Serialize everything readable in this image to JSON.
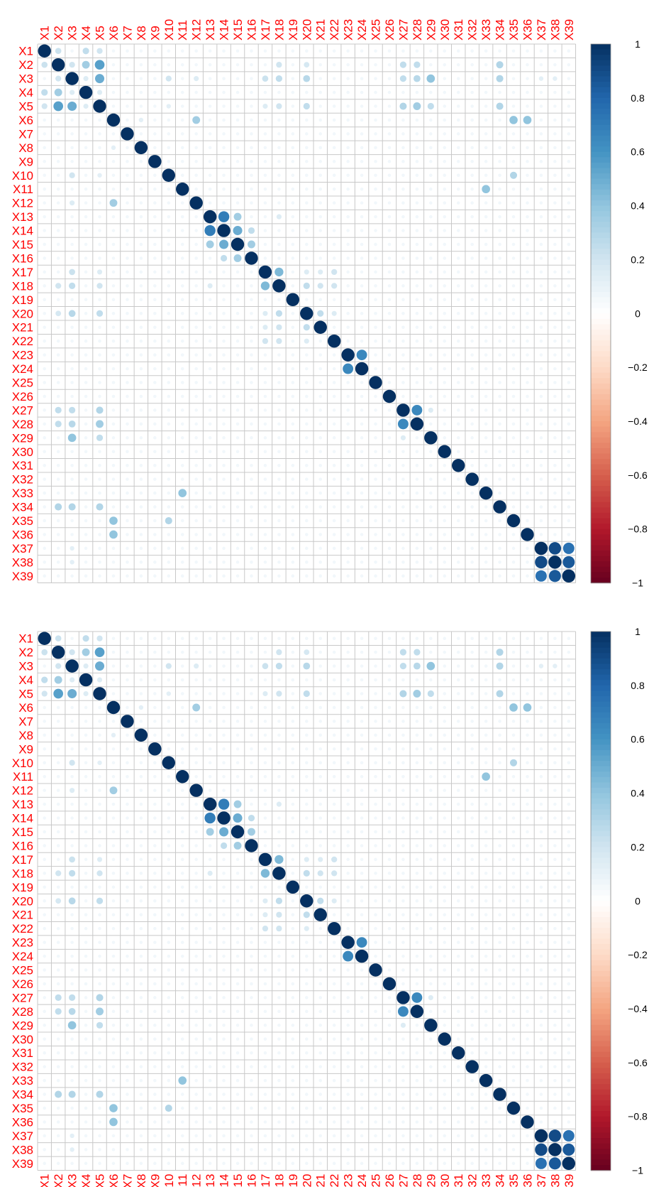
{
  "chart_data": [
    {
      "type": "heatmap",
      "style": "corrplot-circle",
      "labels": [
        "X1",
        "X2",
        "X3",
        "X4",
        "X5",
        "X6",
        "X7",
        "X8",
        "X9",
        "X10",
        "X11",
        "X12",
        "X13",
        "X14",
        "X15",
        "X16",
        "X17",
        "X18",
        "X19",
        "X20",
        "X21",
        "X22",
        "X23",
        "X24",
        "X25",
        "X26",
        "X27",
        "X28",
        "X29",
        "X30",
        "X31",
        "X32",
        "X33",
        "X34",
        "X35",
        "X36",
        "X37",
        "X38",
        "X39"
      ],
      "label_color": "#ff0000",
      "value_range": [
        -1,
        1
      ],
      "colorbar_ticks": [
        "1",
        "0.8",
        "0.6",
        "0.4",
        "0.2",
        "0",
        "−0.2",
        "−0.4",
        "−0.6",
        "−0.8",
        "−1"
      ],
      "colorscale": [
        "#67001f",
        "#b2182b",
        "#d6604d",
        "#f4a582",
        "#fddbc7",
        "#ffffff",
        "#d1e5f0",
        "#92c5de",
        "#4393c3",
        "#2166ac",
        "#053061"
      ],
      "x_labels_position": "top",
      "diagonal": 1,
      "background_level": 0.06,
      "correlations": [
        [
          1,
          2,
          0.22
        ],
        [
          1,
          4,
          0.25
        ],
        [
          1,
          5,
          0.2
        ],
        [
          2,
          3,
          0.2
        ],
        [
          2,
          4,
          0.35
        ],
        [
          2,
          5,
          0.55
        ],
        [
          2,
          18,
          0.2
        ],
        [
          2,
          20,
          0.18
        ],
        [
          2,
          27,
          0.25
        ],
        [
          2,
          28,
          0.25
        ],
        [
          2,
          34,
          0.3
        ],
        [
          3,
          4,
          0.15
        ],
        [
          3,
          5,
          0.5
        ],
        [
          3,
          10,
          0.2
        ],
        [
          3,
          12,
          0.15
        ],
        [
          3,
          17,
          0.22
        ],
        [
          3,
          18,
          0.25
        ],
        [
          3,
          20,
          0.28
        ],
        [
          3,
          27,
          0.25
        ],
        [
          3,
          28,
          0.28
        ],
        [
          3,
          29,
          0.4
        ],
        [
          3,
          34,
          0.3
        ],
        [
          3,
          37,
          0.12
        ],
        [
          3,
          38,
          0.12
        ],
        [
          4,
          5,
          0.15
        ],
        [
          5,
          10,
          0.12
        ],
        [
          5,
          17,
          0.15
        ],
        [
          5,
          18,
          0.2
        ],
        [
          5,
          20,
          0.25
        ],
        [
          5,
          27,
          0.3
        ],
        [
          5,
          28,
          0.35
        ],
        [
          5,
          29,
          0.25
        ],
        [
          5,
          34,
          0.3
        ],
        [
          6,
          8,
          0.12
        ],
        [
          6,
          12,
          0.35
        ],
        [
          6,
          35,
          0.4
        ],
        [
          6,
          36,
          0.4
        ],
        [
          10,
          35,
          0.3
        ],
        [
          11,
          33,
          0.4
        ],
        [
          13,
          14,
          0.7
        ],
        [
          13,
          15,
          0.35
        ],
        [
          13,
          18,
          0.15
        ],
        [
          14,
          15,
          0.5
        ],
        [
          14,
          16,
          0.25
        ],
        [
          15,
          16,
          0.35
        ],
        [
          17,
          18,
          0.45
        ],
        [
          17,
          20,
          0.15
        ],
        [
          17,
          21,
          0.15
        ],
        [
          17,
          22,
          0.2
        ],
        [
          18,
          20,
          0.25
        ],
        [
          18,
          21,
          0.2
        ],
        [
          18,
          22,
          0.2
        ],
        [
          20,
          21,
          0.25
        ],
        [
          20,
          22,
          0.15
        ],
        [
          23,
          24,
          0.65
        ],
        [
          27,
          28,
          0.65
        ],
        [
          27,
          29,
          0.15
        ],
        [
          37,
          38,
          0.9
        ],
        [
          37,
          39,
          0.75
        ],
        [
          38,
          39,
          0.85
        ]
      ]
    },
    {
      "type": "heatmap",
      "style": "corrplot-circle",
      "labels": [
        "X1",
        "X2",
        "X3",
        "X4",
        "X5",
        "X6",
        "X7",
        "X8",
        "X9",
        "X10",
        "X11",
        "X12",
        "X13",
        "X14",
        "X15",
        "X16",
        "X17",
        "X18",
        "X19",
        "X20",
        "X21",
        "X22",
        "X23",
        "X24",
        "X25",
        "X26",
        "X27",
        "X28",
        "X29",
        "X30",
        "X31",
        "X32",
        "X33",
        "X34",
        "X35",
        "X36",
        "X37",
        "X38",
        "X39"
      ],
      "label_color": "#ff0000",
      "value_range": [
        -1,
        1
      ],
      "colorbar_ticks": [
        "1",
        "0.8",
        "0.6",
        "0.4",
        "0.2",
        "0",
        "−0.2",
        "−0.4",
        "−0.6",
        "−0.8",
        "−1"
      ],
      "colorscale": [
        "#67001f",
        "#b2182b",
        "#d6604d",
        "#f4a582",
        "#fddbc7",
        "#ffffff",
        "#d1e5f0",
        "#92c5de",
        "#4393c3",
        "#2166ac",
        "#053061"
      ],
      "x_labels_position": "bottom",
      "diagonal": 1,
      "background_level": 0.06,
      "correlations": [
        [
          1,
          2,
          0.22
        ],
        [
          1,
          4,
          0.25
        ],
        [
          1,
          5,
          0.2
        ],
        [
          2,
          3,
          0.2
        ],
        [
          2,
          4,
          0.35
        ],
        [
          2,
          5,
          0.55
        ],
        [
          2,
          18,
          0.2
        ],
        [
          2,
          20,
          0.18
        ],
        [
          2,
          27,
          0.25
        ],
        [
          2,
          28,
          0.25
        ],
        [
          2,
          34,
          0.3
        ],
        [
          3,
          4,
          0.15
        ],
        [
          3,
          5,
          0.5
        ],
        [
          3,
          10,
          0.2
        ],
        [
          3,
          12,
          0.15
        ],
        [
          3,
          17,
          0.22
        ],
        [
          3,
          18,
          0.25
        ],
        [
          3,
          20,
          0.28
        ],
        [
          3,
          27,
          0.25
        ],
        [
          3,
          28,
          0.28
        ],
        [
          3,
          29,
          0.4
        ],
        [
          3,
          34,
          0.3
        ],
        [
          3,
          37,
          0.12
        ],
        [
          3,
          38,
          0.12
        ],
        [
          4,
          5,
          0.15
        ],
        [
          5,
          10,
          0.12
        ],
        [
          5,
          17,
          0.15
        ],
        [
          5,
          18,
          0.2
        ],
        [
          5,
          20,
          0.25
        ],
        [
          5,
          27,
          0.3
        ],
        [
          5,
          28,
          0.35
        ],
        [
          5,
          29,
          0.25
        ],
        [
          5,
          34,
          0.3
        ],
        [
          6,
          8,
          0.12
        ],
        [
          6,
          12,
          0.35
        ],
        [
          6,
          35,
          0.4
        ],
        [
          6,
          36,
          0.4
        ],
        [
          10,
          35,
          0.3
        ],
        [
          11,
          33,
          0.4
        ],
        [
          13,
          14,
          0.7
        ],
        [
          13,
          15,
          0.35
        ],
        [
          13,
          18,
          0.15
        ],
        [
          14,
          15,
          0.5
        ],
        [
          14,
          16,
          0.25
        ],
        [
          15,
          16,
          0.35
        ],
        [
          17,
          18,
          0.45
        ],
        [
          17,
          20,
          0.15
        ],
        [
          17,
          21,
          0.15
        ],
        [
          17,
          22,
          0.2
        ],
        [
          18,
          20,
          0.25
        ],
        [
          18,
          21,
          0.2
        ],
        [
          18,
          22,
          0.2
        ],
        [
          20,
          21,
          0.25
        ],
        [
          20,
          22,
          0.15
        ],
        [
          23,
          24,
          0.65
        ],
        [
          27,
          28,
          0.65
        ],
        [
          27,
          29,
          0.15
        ],
        [
          37,
          38,
          0.9
        ],
        [
          37,
          39,
          0.75
        ],
        [
          38,
          39,
          0.85
        ]
      ]
    }
  ]
}
